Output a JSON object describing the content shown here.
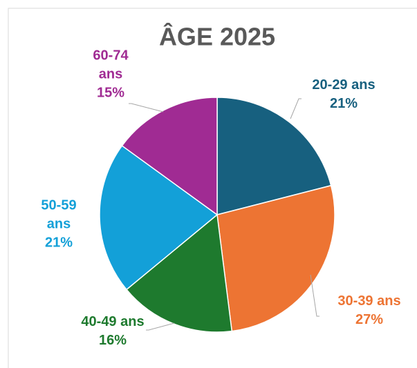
{
  "chart_data": {
    "type": "pie",
    "title": "ÂGE 2025",
    "categories": [
      "20-29 ans",
      "30-39 ans",
      "40-49 ans",
      "50-59 ans",
      "60-74 ans"
    ],
    "values": [
      21,
      27,
      16,
      21,
      15
    ],
    "value_labels": [
      "21%",
      "27%",
      "16%",
      "21%",
      "15%"
    ],
    "colors": [
      "#17607f",
      "#ed7433",
      "#1e7a2e",
      "#13a0d8",
      "#a02b93"
    ]
  }
}
